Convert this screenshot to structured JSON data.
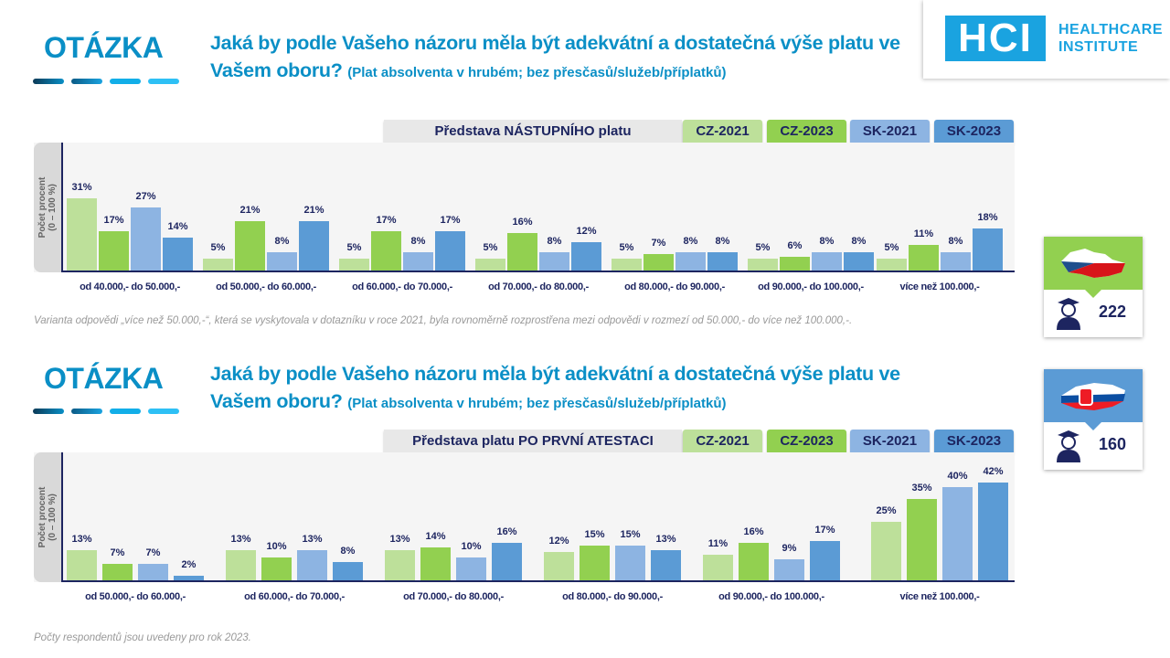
{
  "header": {
    "otazka": "OTÁZKA",
    "question": "Jaká by podle Vašeho názoru měla být adekvátní a dostatečná výše platu ve Vašem oboru?",
    "question_note": "(Plat absolventa  v hrubém;  bez přesčasů/služeb/příplatků)"
  },
  "logo": {
    "mark": "HCI",
    "line1": "HEALTHCARE",
    "line2": "INSTITUTE"
  },
  "colors": {
    "CZ-2021": "#bde09a",
    "CZ-2023": "#92d050",
    "SK-2021": "#8db4e2",
    "SK-2023": "#5b9bd5"
  },
  "legend": [
    "CZ-2021",
    "CZ-2023",
    "SK-2021",
    "SK-2023"
  ],
  "chart_data": [
    {
      "type": "bar",
      "title": "Představa NÁSTUPNÍHO platu",
      "ylabel": "Počet procent (0 – 100 %)",
      "ylim": [
        0,
        100
      ],
      "categories": [
        "od 40.000,- do 50.000,-",
        "od 50.000,- do 60.000,-",
        "od 60.000,- do 70.000,-",
        "od 70.000,- do 80.000,-",
        "od 80.000,- do 90.000,-",
        "od 90.000,- do 100.000,-",
        "více než 100.000,-"
      ],
      "series": [
        {
          "name": "CZ-2021",
          "values": [
            31,
            5,
            5,
            5,
            5,
            5,
            5
          ]
        },
        {
          "name": "CZ-2023",
          "values": [
            17,
            21,
            17,
            16,
            7,
            6,
            11
          ]
        },
        {
          "name": "SK-2021",
          "values": [
            27,
            8,
            8,
            8,
            8,
            8,
            8
          ]
        },
        {
          "name": "SK-2023",
          "values": [
            14,
            21,
            17,
            12,
            8,
            8,
            18
          ]
        }
      ]
    },
    {
      "type": "bar",
      "title": "Představa platu PO PRVNÍ ATESTACI",
      "ylabel": "Počet procent (0 – 100 %)",
      "ylim": [
        0,
        100
      ],
      "categories": [
        "od 50.000,- do 60.000,-",
        "od 60.000,- do 70.000,-",
        "od 70.000,- do 80.000,-",
        "od 80.000,- do 90.000,-",
        "od 90.000,- do 100.000,-",
        "více než 100.000,-"
      ],
      "series": [
        {
          "name": "CZ-2021",
          "values": [
            13,
            13,
            13,
            12,
            11,
            25
          ]
        },
        {
          "name": "CZ-2023",
          "values": [
            7,
            10,
            14,
            15,
            16,
            35
          ]
        },
        {
          "name": "SK-2021",
          "values": [
            7,
            13,
            10,
            15,
            9,
            40
          ]
        },
        {
          "name": "SK-2023",
          "values": [
            2,
            8,
            16,
            13,
            17,
            42
          ]
        }
      ]
    }
  ],
  "ylabel_line1": "Počet procent",
  "ylabel_line2": "(0 – 100 %)",
  "notes": {
    "first": "Varianta odpovědi „více než 50.000,-“, která se vyskytovala v dotazníku v roce 2021, byla rovnoměrně  rozprostřena mezi odpovědi v rozmezí od 50.000,- do více než 100.000,-.",
    "second": "Počty respondentů jsou uvedeny  pro rok 2023."
  },
  "respondents": {
    "cz": "222",
    "sk": "160"
  }
}
